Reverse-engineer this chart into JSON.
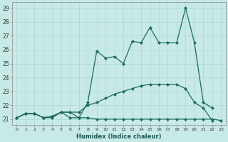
{
  "xlabel": "Humidex (Indice chaleur)",
  "bg_color": "#c8eae6",
  "grid_color": "#a8d8d4",
  "line_color": "#1a6b5a",
  "xlim": [
    -0.5,
    23.5
  ],
  "ylim": [
    20.6,
    29.4
  ],
  "xticks": [
    0,
    1,
    2,
    3,
    4,
    5,
    6,
    7,
    8,
    9,
    10,
    11,
    12,
    13,
    14,
    15,
    16,
    17,
    18,
    19,
    20,
    21,
    22,
    23
  ],
  "yticks": [
    21,
    22,
    23,
    24,
    25,
    26,
    27,
    28,
    29
  ],
  "line1_x": [
    0,
    1,
    2,
    3,
    4,
    5,
    6,
    7,
    8,
    9,
    10,
    11,
    12,
    13,
    14,
    15,
    16,
    17,
    18,
    19,
    20,
    21,
    22,
    23
  ],
  "line1_y": [
    21.1,
    21.4,
    21.4,
    21.1,
    21.1,
    21.5,
    21.5,
    21.1,
    21.1,
    21.0,
    21.0,
    21.0,
    21.0,
    21.0,
    21.0,
    21.0,
    21.0,
    21.0,
    21.0,
    21.0,
    21.0,
    21.0,
    21.0,
    20.9
  ],
  "line2_x": [
    0,
    1,
    2,
    3,
    4,
    5,
    6,
    7,
    8,
    9,
    10,
    11,
    12,
    13,
    14,
    15,
    16,
    17,
    18,
    19,
    20,
    21,
    22,
    23
  ],
  "line2_y": [
    21.1,
    21.4,
    21.4,
    21.1,
    21.2,
    21.5,
    21.5,
    21.5,
    22.0,
    22.2,
    22.5,
    22.8,
    23.0,
    23.2,
    23.4,
    23.5,
    23.5,
    23.5,
    23.5,
    23.2,
    22.2,
    21.8,
    20.9,
    null
  ],
  "line3_x": [
    0,
    1,
    2,
    3,
    4,
    5,
    6,
    7,
    8,
    9,
    10,
    11,
    12,
    13,
    14,
    15,
    16,
    17,
    18,
    19,
    20,
    21,
    22
  ],
  "line3_y": [
    21.1,
    21.4,
    21.4,
    21.1,
    21.2,
    21.5,
    21.1,
    21.1,
    22.2,
    25.9,
    25.4,
    25.5,
    25.0,
    26.6,
    26.5,
    27.6,
    26.5,
    26.5,
    26.5,
    29.0,
    26.5,
    22.2,
    21.8
  ],
  "marker": "D",
  "markersize": 2.5,
  "linewidth": 0.9
}
